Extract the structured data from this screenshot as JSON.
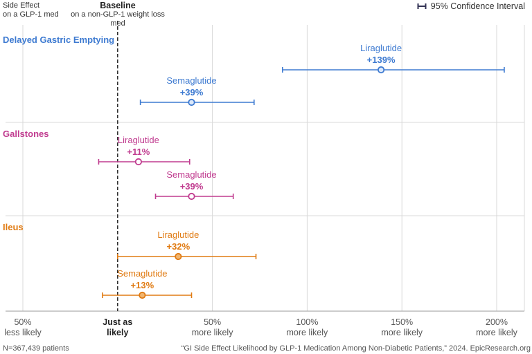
{
  "header": {
    "side_effect_line1": "Side Effect",
    "side_effect_line2": "on a GLP-1 med",
    "baseline_title": "Baseline",
    "baseline_sub": "on a non-GLP-1 weight loss med",
    "legend_label": "95% Confidence Interval"
  },
  "footer": {
    "n_label": "N=367,439 patients",
    "source": "“GI Side Effect Likelihood by GLP-1 Medication Among Non-Diabetic Patients,” 2024. EpicResearch.org"
  },
  "colors": {
    "blue": "#3d7ad1",
    "magenta": "#c03b8f",
    "orange": "#e07b13",
    "grid": "#d9d9d9",
    "baseline": "#333333"
  },
  "chart_data": {
    "type": "forest",
    "xlim": [
      -50,
      210
    ],
    "ticks": [
      {
        "value": -50,
        "line1": "50%",
        "line2": "less  likely",
        "bold": false
      },
      {
        "value": 0,
        "line1": "Just as",
        "line2": "likely",
        "bold": true
      },
      {
        "value": 50,
        "line1": "50%",
        "line2": "more likely",
        "bold": false
      },
      {
        "value": 100,
        "line1": "100%",
        "line2": "more likely",
        "bold": false
      },
      {
        "value": 150,
        "line1": "150%",
        "line2": "more likely",
        "bold": false
      },
      {
        "value": 200,
        "line1": "200%",
        "line2": "more likely",
        "bold": false
      }
    ],
    "groups": [
      {
        "name": "Delayed Gastric Emptying",
        "color": "blue",
        "items": [
          {
            "drug": "Liraglutide",
            "label": "+139%",
            "value": 139,
            "ci": [
              87,
              204
            ]
          },
          {
            "drug": "Semaglutide",
            "label": "+39%",
            "value": 39,
            "ci": [
              12,
              72
            ]
          }
        ]
      },
      {
        "name": "Gallstones",
        "color": "magenta",
        "items": [
          {
            "drug": "Liraglutide",
            "label": "+11%",
            "value": 11,
            "ci": [
              -10,
              38
            ]
          },
          {
            "drug": "Semaglutide",
            "label": "+39%",
            "value": 39,
            "ci": [
              20,
              61
            ]
          }
        ]
      },
      {
        "name": "Ileus",
        "color": "orange",
        "items": [
          {
            "drug": "Liraglutide",
            "label": "+32%",
            "value": 32,
            "ci": [
              0,
              73
            ]
          },
          {
            "drug": "Semaglutide",
            "label": "+13%",
            "value": 13,
            "ci": [
              -8,
              39
            ]
          }
        ]
      }
    ]
  }
}
